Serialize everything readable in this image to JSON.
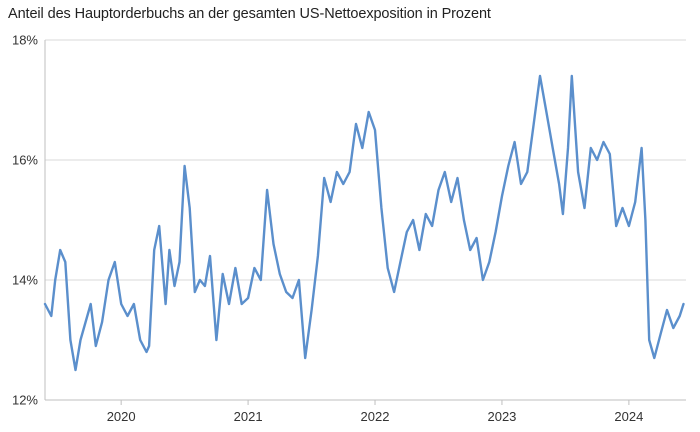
{
  "chart_data": {
    "type": "line",
    "title": "Anteil des Hauptorderbuchs an der gesamten US-Nettoexposition in Prozent",
    "xlabel": "",
    "ylabel": "",
    "x_range": [
      2019.4,
      2024.45
    ],
    "ylim": [
      12,
      18
    ],
    "y_ticks": [
      12,
      14,
      16,
      18
    ],
    "y_tick_labels": [
      "12%",
      "14%",
      "16%",
      "18%"
    ],
    "x_ticks": [
      2020,
      2021,
      2022,
      2023,
      2024
    ],
    "x_tick_labels": [
      "2020",
      "2021",
      "2022",
      "2023",
      "2024"
    ],
    "grid": "horizontal",
    "series": [
      {
        "color": "#5b8fcc",
        "x": [
          2019.4,
          2019.45,
          2019.48,
          2019.52,
          2019.56,
          2019.6,
          2019.64,
          2019.68,
          2019.72,
          2019.76,
          2019.8,
          2019.85,
          2019.9,
          2019.95,
          2020.0,
          2020.05,
          2020.1,
          2020.15,
          2020.2,
          2020.22,
          2020.26,
          2020.3,
          2020.35,
          2020.38,
          2020.42,
          2020.46,
          2020.5,
          2020.54,
          2020.58,
          2020.62,
          2020.66,
          2020.7,
          2020.75,
          2020.8,
          2020.85,
          2020.9,
          2020.95,
          2021.0,
          2021.05,
          2021.1,
          2021.15,
          2021.2,
          2021.25,
          2021.3,
          2021.35,
          2021.4,
          2021.45,
          2021.5,
          2021.55,
          2021.6,
          2021.65,
          2021.7,
          2021.75,
          2021.8,
          2021.85,
          2021.9,
          2021.95,
          2022.0,
          2022.05,
          2022.1,
          2022.15,
          2022.2,
          2022.25,
          2022.3,
          2022.35,
          2022.4,
          2022.45,
          2022.5,
          2022.55,
          2022.6,
          2022.65,
          2022.7,
          2022.75,
          2022.8,
          2022.85,
          2022.9,
          2022.95,
          2023.0,
          2023.05,
          2023.1,
          2023.15,
          2023.2,
          2023.25,
          2023.3,
          2023.35,
          2023.4,
          2023.45,
          2023.48,
          2023.52,
          2023.55,
          2023.6,
          2023.65,
          2023.7,
          2023.75,
          2023.8,
          2023.85,
          2023.9,
          2023.95,
          2024.0,
          2024.05,
          2024.1,
          2024.13,
          2024.16,
          2024.2,
          2024.25,
          2024.3,
          2024.35,
          2024.4,
          2024.43
        ],
        "y": [
          13.6,
          13.4,
          14.0,
          14.5,
          14.3,
          13.0,
          12.5,
          13.0,
          13.3,
          13.6,
          12.9,
          13.3,
          14.0,
          14.3,
          13.6,
          13.4,
          13.6,
          13.0,
          12.8,
          12.9,
          14.5,
          14.9,
          13.6,
          14.5,
          13.9,
          14.3,
          15.9,
          15.2,
          13.8,
          14.0,
          13.9,
          14.4,
          13.0,
          14.1,
          13.6,
          14.2,
          13.6,
          13.7,
          14.2,
          14.0,
          15.5,
          14.6,
          14.1,
          13.8,
          13.7,
          14.0,
          12.7,
          13.5,
          14.4,
          15.7,
          15.3,
          15.8,
          15.6,
          15.8,
          16.6,
          16.2,
          16.8,
          16.5,
          15.2,
          14.2,
          13.8,
          14.3,
          14.8,
          15.0,
          14.5,
          15.1,
          14.9,
          15.5,
          15.8,
          15.3,
          15.7,
          15.0,
          14.5,
          14.7,
          14.0,
          14.3,
          14.8,
          15.4,
          15.9,
          16.3,
          15.6,
          15.8,
          16.6,
          17.4,
          16.8,
          16.2,
          15.6,
          15.1,
          16.2,
          17.4,
          15.8,
          15.2,
          16.2,
          16.0,
          16.3,
          16.1,
          14.9,
          15.2,
          14.9,
          15.3,
          16.2,
          15.0,
          13.0,
          12.7,
          13.1,
          13.5,
          13.2,
          13.4,
          13.6
        ]
      }
    ]
  }
}
